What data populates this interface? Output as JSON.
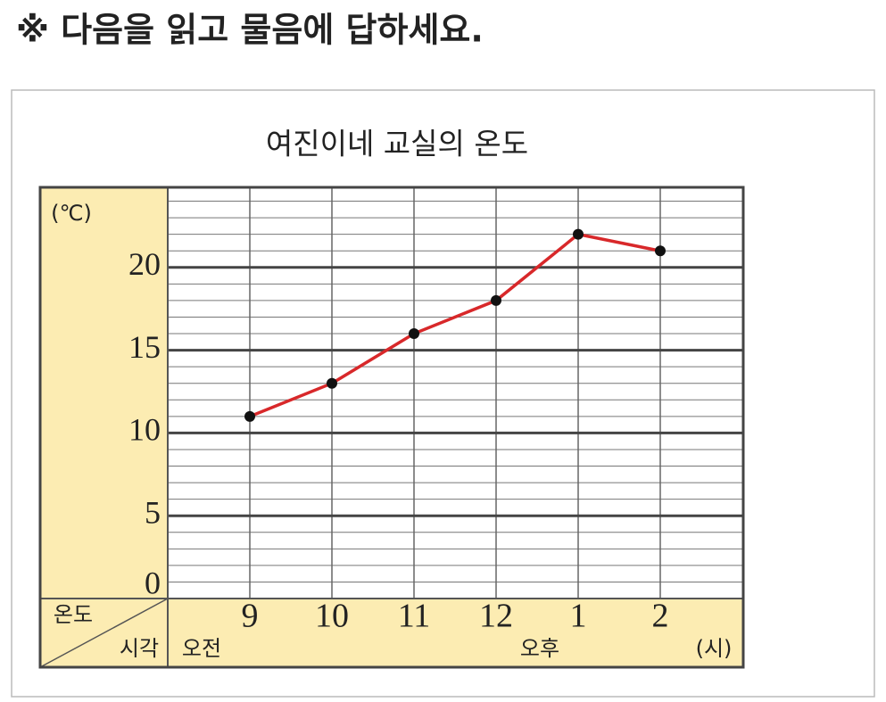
{
  "header": {
    "instruction": "※ 다음을 읽고 물음에 답하세요."
  },
  "chart_data": {
    "type": "line",
    "title": "여진이네 교실의 온도",
    "categories": [
      "9",
      "10",
      "11",
      "12",
      "1",
      "2"
    ],
    "series": [
      {
        "name": "온도",
        "color": "#d8282a",
        "values": [
          11,
          13,
          16,
          18,
          22,
          21
        ]
      }
    ],
    "ylim": [
      0,
      25
    ],
    "yticks": [
      0,
      5,
      10,
      15,
      20
    ],
    "y_unit": "(℃)",
    "y_label": "온도",
    "x_label": "시각",
    "x_unit": "(시)",
    "am_label": "오전",
    "pm_label": "오후",
    "grid": true
  }
}
